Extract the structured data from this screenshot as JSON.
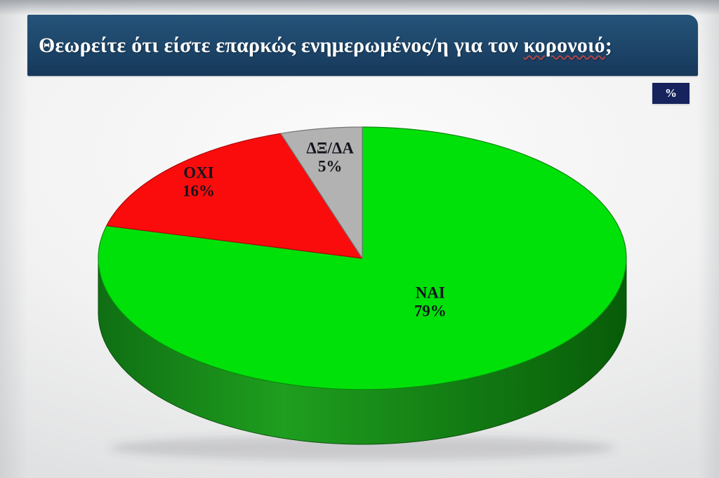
{
  "header": {
    "question_part1": "Θεωρείτε ότι είστε επαρκώς ενημερωμένος/η για τον ",
    "question_word": "κορονοιό",
    "question_suffix": ";",
    "unit_badge": "%"
  },
  "colors": {
    "title_bar_top": "#255379",
    "title_bar_mid": "#1d4569",
    "title_bar_bottom": "#16385a",
    "badge_bg": "#16235c",
    "title_text": "#ffffff"
  },
  "chart_data": {
    "type": "pie",
    "style": "3d",
    "title": "Θεωρείτε ότι είστε επαρκώς ενημερωμένος/η για τον κορονοιό;",
    "unit": "%",
    "start_angle_deg": 0,
    "direction": "clockwise",
    "legend": "none",
    "label_color": "#14141e",
    "slices": [
      {
        "label": "ΝΑΙ",
        "value": 79,
        "color": "#00e10a",
        "stroke": "#0c8a0c",
        "label_radius": 0.42
      },
      {
        "label": "ΟΧΙ",
        "value": 16,
        "color": "#fa0c0c",
        "stroke": "#a80909",
        "label_radius": 0.85
      },
      {
        "label": "ΔΞ/ΔΑ",
        "value": 5,
        "color": "#b2b2b2",
        "stroke": "#757575",
        "label_radius": 0.78
      }
    ],
    "rim_gradient": [
      "#0f6f13",
      "#1f9e1f",
      "#085c08"
    ],
    "rim_stroke": "#0a4f0a",
    "shadow_color": "rgba(70,80,85,0.18)"
  }
}
